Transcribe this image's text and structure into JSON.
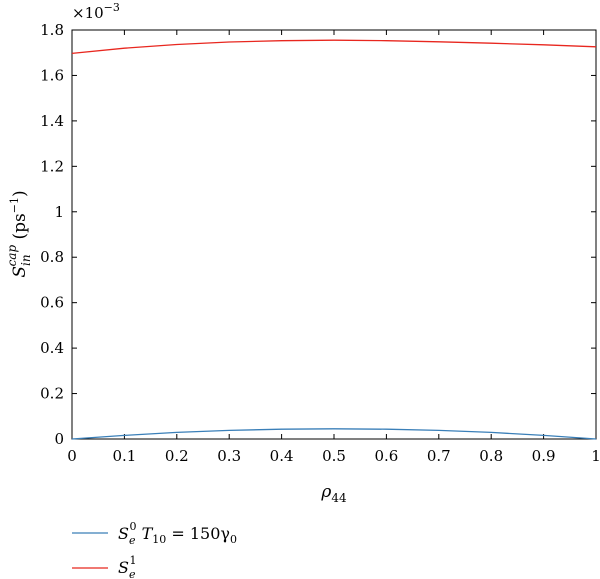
{
  "chart_data": {
    "type": "line",
    "title": "",
    "xlabel": {
      "main": "ρ",
      "sub": "44"
    },
    "ylabel": {
      "main": "S",
      "sub": "in",
      "sup": "cap",
      "unit_open": " (ps",
      "unit_sup": "−1",
      "unit_close": ")"
    },
    "y_multiplier": {
      "base": "×10",
      "exp": "−3"
    },
    "xlim": [
      0,
      1
    ],
    "ylim": [
      0,
      1.8
    ],
    "x_ticks": [
      0,
      0.1,
      0.2,
      0.3,
      0.4,
      0.5,
      0.6,
      0.7,
      0.8,
      0.9,
      1
    ],
    "x_tick_labels": [
      "0",
      "0.1",
      "0.2",
      "0.3",
      "0.4",
      "0.5",
      "0.6",
      "0.7",
      "0.8",
      "0.9",
      "1"
    ],
    "y_ticks": [
      0,
      0.2,
      0.4,
      0.6,
      0.8,
      1,
      1.2,
      1.4,
      1.6,
      1.8
    ],
    "y_tick_labels": [
      "0",
      "0.2",
      "0.4",
      "0.6",
      "0.8",
      "1",
      "1.2",
      "1.4",
      "1.6",
      "1.8"
    ],
    "grid": false,
    "legend_position": "below",
    "series": [
      {
        "name": "S_e^0 T_10 = 150γ_0",
        "color": "#3a7fb8",
        "x": [
          0,
          0.1,
          0.2,
          0.3,
          0.4,
          0.5,
          0.6,
          0.7,
          0.8,
          0.9,
          1
        ],
        "values": [
          0.0,
          0.016,
          0.029,
          0.038,
          0.043,
          0.045,
          0.043,
          0.038,
          0.029,
          0.016,
          0.0
        ]
      },
      {
        "name": "S_e^1",
        "color": "#e8271f",
        "x": [
          0,
          0.1,
          0.2,
          0.3,
          0.4,
          0.5,
          0.6,
          0.7,
          0.8,
          0.9,
          1
        ],
        "values": [
          1.697,
          1.72,
          1.736,
          1.747,
          1.753,
          1.755,
          1.753,
          1.748,
          1.742,
          1.735,
          1.726
        ]
      }
    ],
    "legend": [
      {
        "main": "S",
        "sub": "e",
        "sup": "0",
        "rest_main": " T",
        "rest_sub": "10",
        "rest_mid": " = 150γ",
        "rest_sub2": "0",
        "color": "#3a7fb8"
      },
      {
        "main": "S",
        "sub": "e",
        "sup": "1",
        "color": "#e8271f"
      }
    ]
  }
}
